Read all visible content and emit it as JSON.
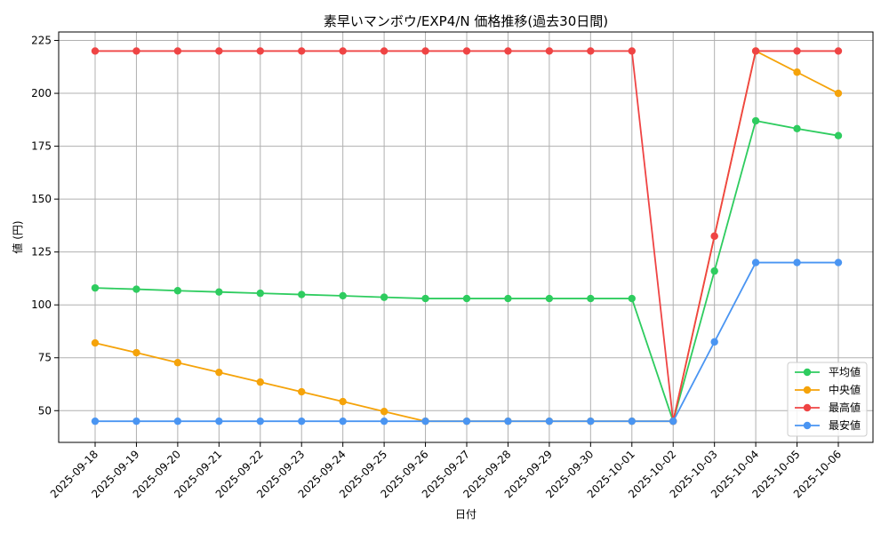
{
  "chart_data": {
    "type": "line",
    "title": "素早いマンボウ/EXP4/N 価格推移(過去30日間)",
    "xlabel": "日付",
    "ylabel": "値 (円)",
    "categories": [
      "2025-09-18",
      "2025-09-19",
      "2025-09-20",
      "2025-09-21",
      "2025-09-22",
      "2025-09-23",
      "2025-09-24",
      "2025-09-25",
      "2025-09-26",
      "2025-09-27",
      "2025-09-28",
      "2025-09-29",
      "2025-09-30",
      "2025-10-01",
      "2025-10-02",
      "2025-10-03",
      "2025-10-04",
      "2025-10-05",
      "2025-10-06"
    ],
    "ylim": [
      35,
      229
    ],
    "yticks": [
      50,
      75,
      100,
      125,
      150,
      175,
      200,
      225
    ],
    "grid": true,
    "legend_position": "bottom-right",
    "series": [
      {
        "name": "平均値",
        "color": "#2ecc5f",
        "values": [
          108,
          107.4,
          106.7,
          106.1,
          105.5,
          104.9,
          104.3,
          103.6,
          103,
          103,
          103,
          103,
          103,
          103,
          45,
          116,
          187,
          183.3,
          180
        ]
      },
      {
        "name": "中央値",
        "color": "#f5a30a",
        "values": [
          82,
          77.4,
          72.7,
          68.1,
          63.5,
          58.9,
          54.3,
          49.6,
          45,
          45,
          45,
          45,
          45,
          45,
          45,
          132.5,
          220,
          210,
          200
        ]
      },
      {
        "name": "最高値",
        "color": "#ef4444",
        "values": [
          220,
          220,
          220,
          220,
          220,
          220,
          220,
          220,
          220,
          220,
          220,
          220,
          220,
          220,
          45,
          132.5,
          220,
          220,
          220
        ]
      },
      {
        "name": "最安値",
        "color": "#4a95f2",
        "values": [
          45,
          45,
          45,
          45,
          45,
          45,
          45,
          45,
          45,
          45,
          45,
          45,
          45,
          45,
          45,
          82.5,
          120,
          120,
          120
        ]
      }
    ]
  }
}
